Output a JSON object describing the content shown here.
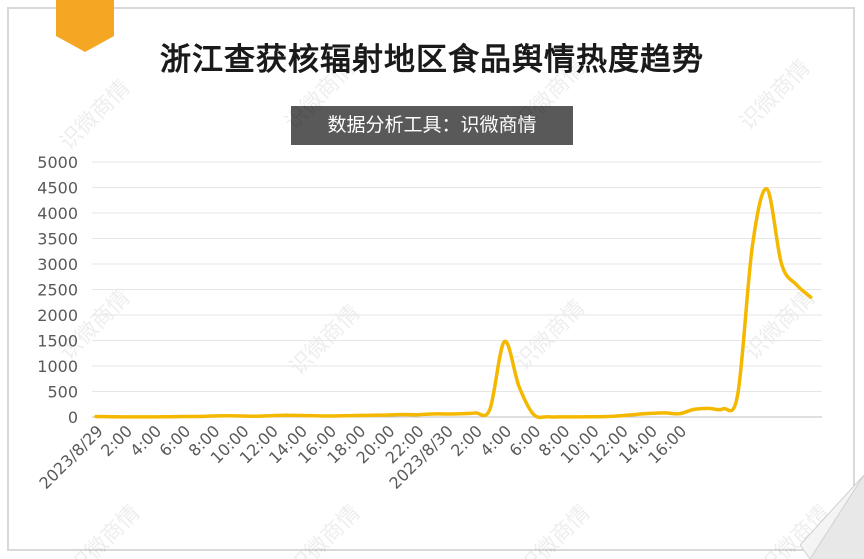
{
  "title": "浙江查获核辐射地区食品舆情热度趋势",
  "subtitle": "数据分析工具：识微商情",
  "watermark": "识微商情",
  "colors": {
    "line": "#F5B800",
    "accent": "#F5A623",
    "grid": "#e6e6e6",
    "axis_text": "#595959"
  },
  "chart_data": {
    "type": "line",
    "title": "浙江查获核辐射地区食品舆情热度趋势",
    "xlabel": "",
    "ylabel": "",
    "ylim": [
      0,
      5000
    ],
    "yticks": [
      0,
      500,
      1000,
      1500,
      2000,
      2500,
      3000,
      3500,
      4000,
      4500,
      5000
    ],
    "xtick_labels": [
      "2023/8/29",
      "2:00",
      "4:00",
      "6:00",
      "8:00",
      "10:00",
      "12:00",
      "14:00",
      "16:00",
      "18:00",
      "20:00",
      "22:00",
      "2023/8/30",
      "2:00",
      "4:00",
      "6:00",
      "8:00",
      "10:00",
      "12:00",
      "14:00",
      "16:00"
    ],
    "grid": true,
    "legend": "none",
    "x_hours": [
      0,
      1,
      2,
      3,
      4,
      5,
      6,
      7,
      8,
      9,
      10,
      11,
      12,
      13,
      14,
      15,
      16,
      17,
      18,
      19,
      20,
      21,
      22,
      23,
      24,
      25,
      26,
      27,
      28,
      29,
      30,
      31,
      32,
      33,
      34,
      35,
      36,
      37,
      38,
      39,
      40,
      41,
      42,
      43,
      44,
      45,
      46,
      47,
      48,
      49
    ],
    "values": [
      10,
      5,
      3,
      2,
      2,
      5,
      10,
      10,
      20,
      25,
      20,
      15,
      25,
      35,
      30,
      25,
      20,
      25,
      30,
      35,
      40,
      50,
      45,
      60,
      60,
      65,
      80,
      150,
      1480,
      600,
      50,
      5,
      2,
      3,
      5,
      10,
      25,
      50,
      70,
      80,
      65,
      150,
      170,
      160,
      450,
      3350,
      4470,
      3000,
      2600,
      2350
    ]
  }
}
